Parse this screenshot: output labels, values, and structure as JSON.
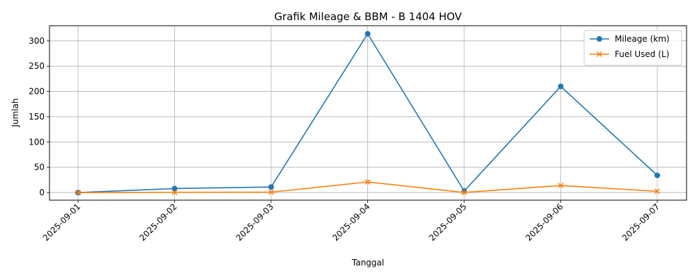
{
  "chart_data": {
    "type": "line",
    "title": "Grafik Mileage & BBM - B 1404 HOV",
    "xlabel": "Tanggal",
    "ylabel": "Jumlah",
    "categories": [
      "2025-09-01",
      "2025-09-02",
      "2025-09-03",
      "2025-09-04",
      "2025-09-05",
      "2025-09-06",
      "2025-09-07"
    ],
    "ylim": [
      -15,
      330
    ],
    "yticks": [
      0,
      50,
      100,
      150,
      200,
      250,
      300
    ],
    "grid": true,
    "legend_position": "top-right",
    "series": [
      {
        "name": "Mileage (km)",
        "marker": "circle",
        "color": "#1f77b4",
        "values": [
          0,
          8,
          11,
          314,
          3,
          210,
          34
        ]
      },
      {
        "name": "Fuel Used (L)",
        "marker": "x",
        "color": "#ff7f0e",
        "values": [
          0,
          0.5,
          0.8,
          21,
          0.2,
          14,
          2.5
        ]
      }
    ]
  }
}
